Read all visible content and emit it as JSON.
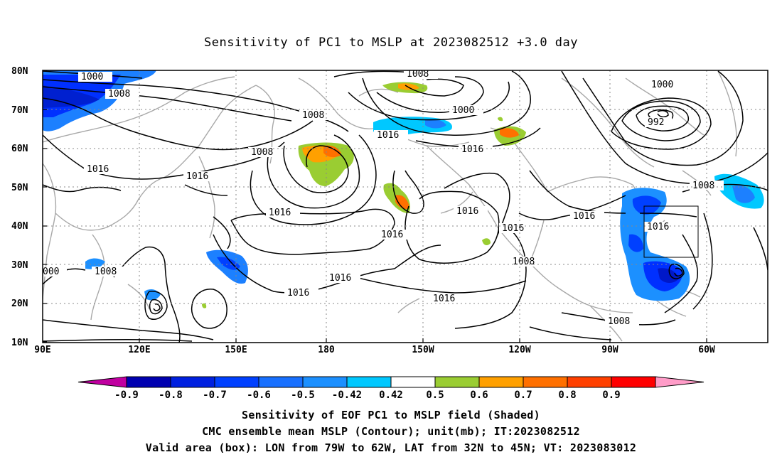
{
  "title": "Sensitivity of PC1 to MSLP at 2023082512 +3.0 day",
  "lat_labels": [
    "80N",
    "70N",
    "60N",
    "50N",
    "40N",
    "30N",
    "20N",
    "10N"
  ],
  "lon_labels": [
    "90E",
    "120E",
    "150E",
    "180",
    "150W",
    "120W",
    "90W",
    "60W"
  ],
  "contour_labels": [
    "1000",
    "1008",
    "1008",
    "1008",
    "1016",
    "1016",
    "1016",
    "1016",
    "1008",
    "1000",
    "1016",
    "1016",
    "1016",
    "1016",
    "1016",
    "1016",
    "1016",
    "1000",
    "992",
    "1008",
    "1016",
    "1008",
    "1008",
    "1016",
    "000",
    "1008"
  ],
  "colorbar": {
    "labels": [
      "-0.9",
      "-0.8",
      "-0.7",
      "-0.6",
      "-0.5",
      "-0.42",
      "0.42",
      "0.5",
      "0.6",
      "0.7",
      "0.8",
      "0.9"
    ],
    "colors": [
      "#c000a0",
      "#0000b0",
      "#0020e0",
      "#0040ff",
      "#1870ff",
      "#1c90ff",
      "#00c8ff",
      "#ffffff",
      "#9acd32",
      "#ffa000",
      "#ff7000",
      "#ff4000",
      "#ff0000",
      "#ff9cc8"
    ]
  },
  "shading_colors": {
    "blue_dark": "#0020e0",
    "blue": "#1c80ff",
    "cyan": "#00c8ff",
    "green": "#9acd32",
    "orange": "#ffa000",
    "dark_orange": "#ff7000",
    "red_orange": "#ff4000"
  },
  "box": {
    "lon_from": "79W",
    "lon_to": "62W",
    "lat_from": "32N",
    "lat_to": "45N"
  },
  "captions": [
    "Sensitivity of EOF PC1 to MSLP field (Shaded)",
    "CMC ensemble mean MSLP (Contour); unit(mb); IT:2023082512",
    "Valid area (box): LON from 79W to 62W, LAT from 32N to 45N; VT: 2023083012"
  ]
}
